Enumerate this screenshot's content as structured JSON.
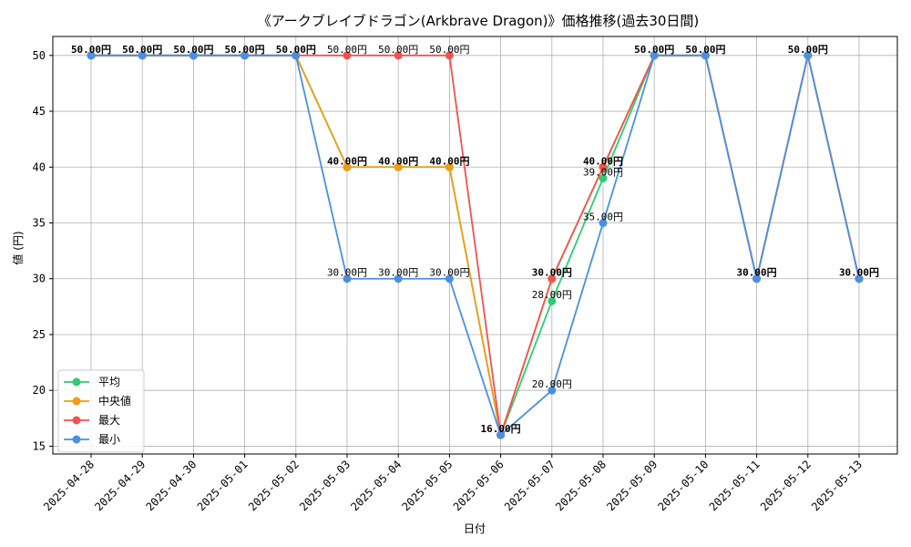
{
  "chart_data": {
    "type": "line",
    "title": "《アークブレイブドラゴン(Arkbrave Dragon)》価格推移(過去30日間)",
    "xlabel": "日付",
    "ylabel": "値 (円)",
    "ylim": [
      14.3,
      51.7
    ],
    "yticks": [
      15,
      20,
      25,
      30,
      35,
      40,
      45,
      50
    ],
    "grid": true,
    "legend_position": "lower-left",
    "categories": [
      "2025-04-28",
      "2025-04-29",
      "2025-04-30",
      "2025-05-01",
      "2025-05-02",
      "2025-05-03",
      "2025-05-04",
      "2025-05-05",
      "2025-05-06",
      "2025-05-07",
      "2025-05-08",
      "2025-05-09",
      "2025-05-10",
      "2025-05-11",
      "2025-05-12",
      "2025-05-13"
    ],
    "series": [
      {
        "name": "平均",
        "color": "#2ecc71",
        "values": [
          50,
          50,
          50,
          50,
          50,
          40,
          40,
          40,
          16,
          28,
          39,
          50,
          50,
          30,
          50,
          30
        ]
      },
      {
        "name": "中央値",
        "color": "#f39c12",
        "values": [
          50,
          50,
          50,
          50,
          50,
          40,
          40,
          40,
          16,
          30,
          40,
          50,
          50,
          30,
          50,
          30
        ]
      },
      {
        "name": "最大",
        "color": "#ef5350",
        "values": [
          50,
          50,
          50,
          50,
          50,
          50,
          50,
          50,
          16,
          30,
          40,
          50,
          50,
          30,
          50,
          30
        ]
      },
      {
        "name": "最小",
        "color": "#4a90e2",
        "values": [
          50,
          50,
          50,
          50,
          50,
          30,
          30,
          30,
          16,
          20,
          35,
          50,
          50,
          30,
          50,
          30
        ]
      }
    ],
    "data_labels": [
      {
        "index": 0,
        "text": "50.00円",
        "y": 50,
        "bold": true
      },
      {
        "index": 1,
        "text": "50.00円",
        "y": 50,
        "bold": true
      },
      {
        "index": 2,
        "text": "50.00円",
        "y": 50,
        "bold": true
      },
      {
        "index": 3,
        "text": "50.00円",
        "y": 50,
        "bold": true
      },
      {
        "index": 4,
        "text": "50.00円",
        "y": 50,
        "bold": true
      },
      {
        "index": 5,
        "text": "50.00円",
        "y": 50,
        "bold": false
      },
      {
        "index": 6,
        "text": "50.00円",
        "y": 50,
        "bold": false
      },
      {
        "index": 7,
        "text": "50.00円",
        "y": 50,
        "bold": false
      },
      {
        "index": 5,
        "text": "40.00円",
        "y": 40,
        "bold": true
      },
      {
        "index": 6,
        "text": "40.00円",
        "y": 40,
        "bold": true
      },
      {
        "index": 7,
        "text": "40.00円",
        "y": 40,
        "bold": true
      },
      {
        "index": 5,
        "text": "30.00円",
        "y": 30,
        "bold": false
      },
      {
        "index": 6,
        "text": "30.00円",
        "y": 30,
        "bold": false
      },
      {
        "index": 7,
        "text": "30.00円",
        "y": 30,
        "bold": false
      },
      {
        "index": 8,
        "text": "16.00円",
        "y": 16,
        "bold": true
      },
      {
        "index": 9,
        "text": "30.00円",
        "y": 30,
        "bold": true
      },
      {
        "index": 9,
        "text": "28.00円",
        "y": 28,
        "bold": false
      },
      {
        "index": 9,
        "text": "20.00円",
        "y": 20,
        "bold": false
      },
      {
        "index": 10,
        "text": "40.00円",
        "y": 40,
        "bold": true
      },
      {
        "index": 10,
        "text": "39.00円",
        "y": 39,
        "bold": false
      },
      {
        "index": 10,
        "text": "35.00円",
        "y": 35,
        "bold": false
      },
      {
        "index": 11,
        "text": "50.00円",
        "y": 50,
        "bold": true
      },
      {
        "index": 12,
        "text": "50.00円",
        "y": 50,
        "bold": true
      },
      {
        "index": 13,
        "text": "30.00円",
        "y": 30,
        "bold": true
      },
      {
        "index": 14,
        "text": "50.00円",
        "y": 50,
        "bold": true
      },
      {
        "index": 15,
        "text": "30.00円",
        "y": 30,
        "bold": true
      }
    ]
  }
}
